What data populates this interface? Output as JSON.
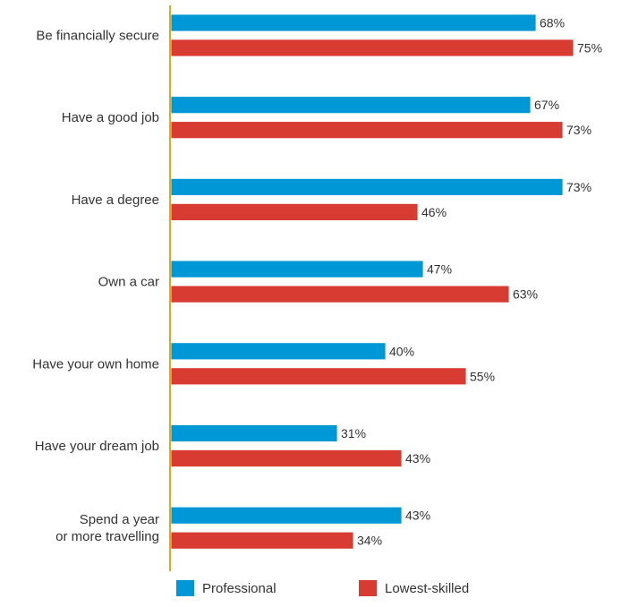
{
  "chart_data": {
    "type": "bar",
    "orientation": "horizontal",
    "title": "",
    "xlabel": "",
    "ylabel": "",
    "xlim": [
      0,
      100
    ],
    "grid": false,
    "legend_position": "bottom",
    "categories": [
      [
        "Be financially secure"
      ],
      [
        "Have a good job"
      ],
      [
        "Have a degree"
      ],
      [
        "Own a car"
      ],
      [
        "Have your own home"
      ],
      [
        "Have your dream job"
      ],
      [
        "Spend a year",
        "or more travelling"
      ]
    ],
    "series": [
      {
        "name": "Professional",
        "color": "#0097d6",
        "values": [
          68,
          67,
          73,
          47,
          40,
          31,
          43
        ],
        "labels": [
          "68%",
          "67%",
          "73%",
          "47%",
          "40%",
          "31%",
          "43%"
        ]
      },
      {
        "name": "Lowest-skilled",
        "color": "#d83b32",
        "values": [
          75,
          73,
          46,
          63,
          55,
          43,
          34
        ],
        "labels": [
          "75%",
          "73%",
          "46%",
          "63%",
          "55%",
          "43%",
          "34%"
        ]
      }
    ],
    "axis_color": "#e8a317"
  }
}
